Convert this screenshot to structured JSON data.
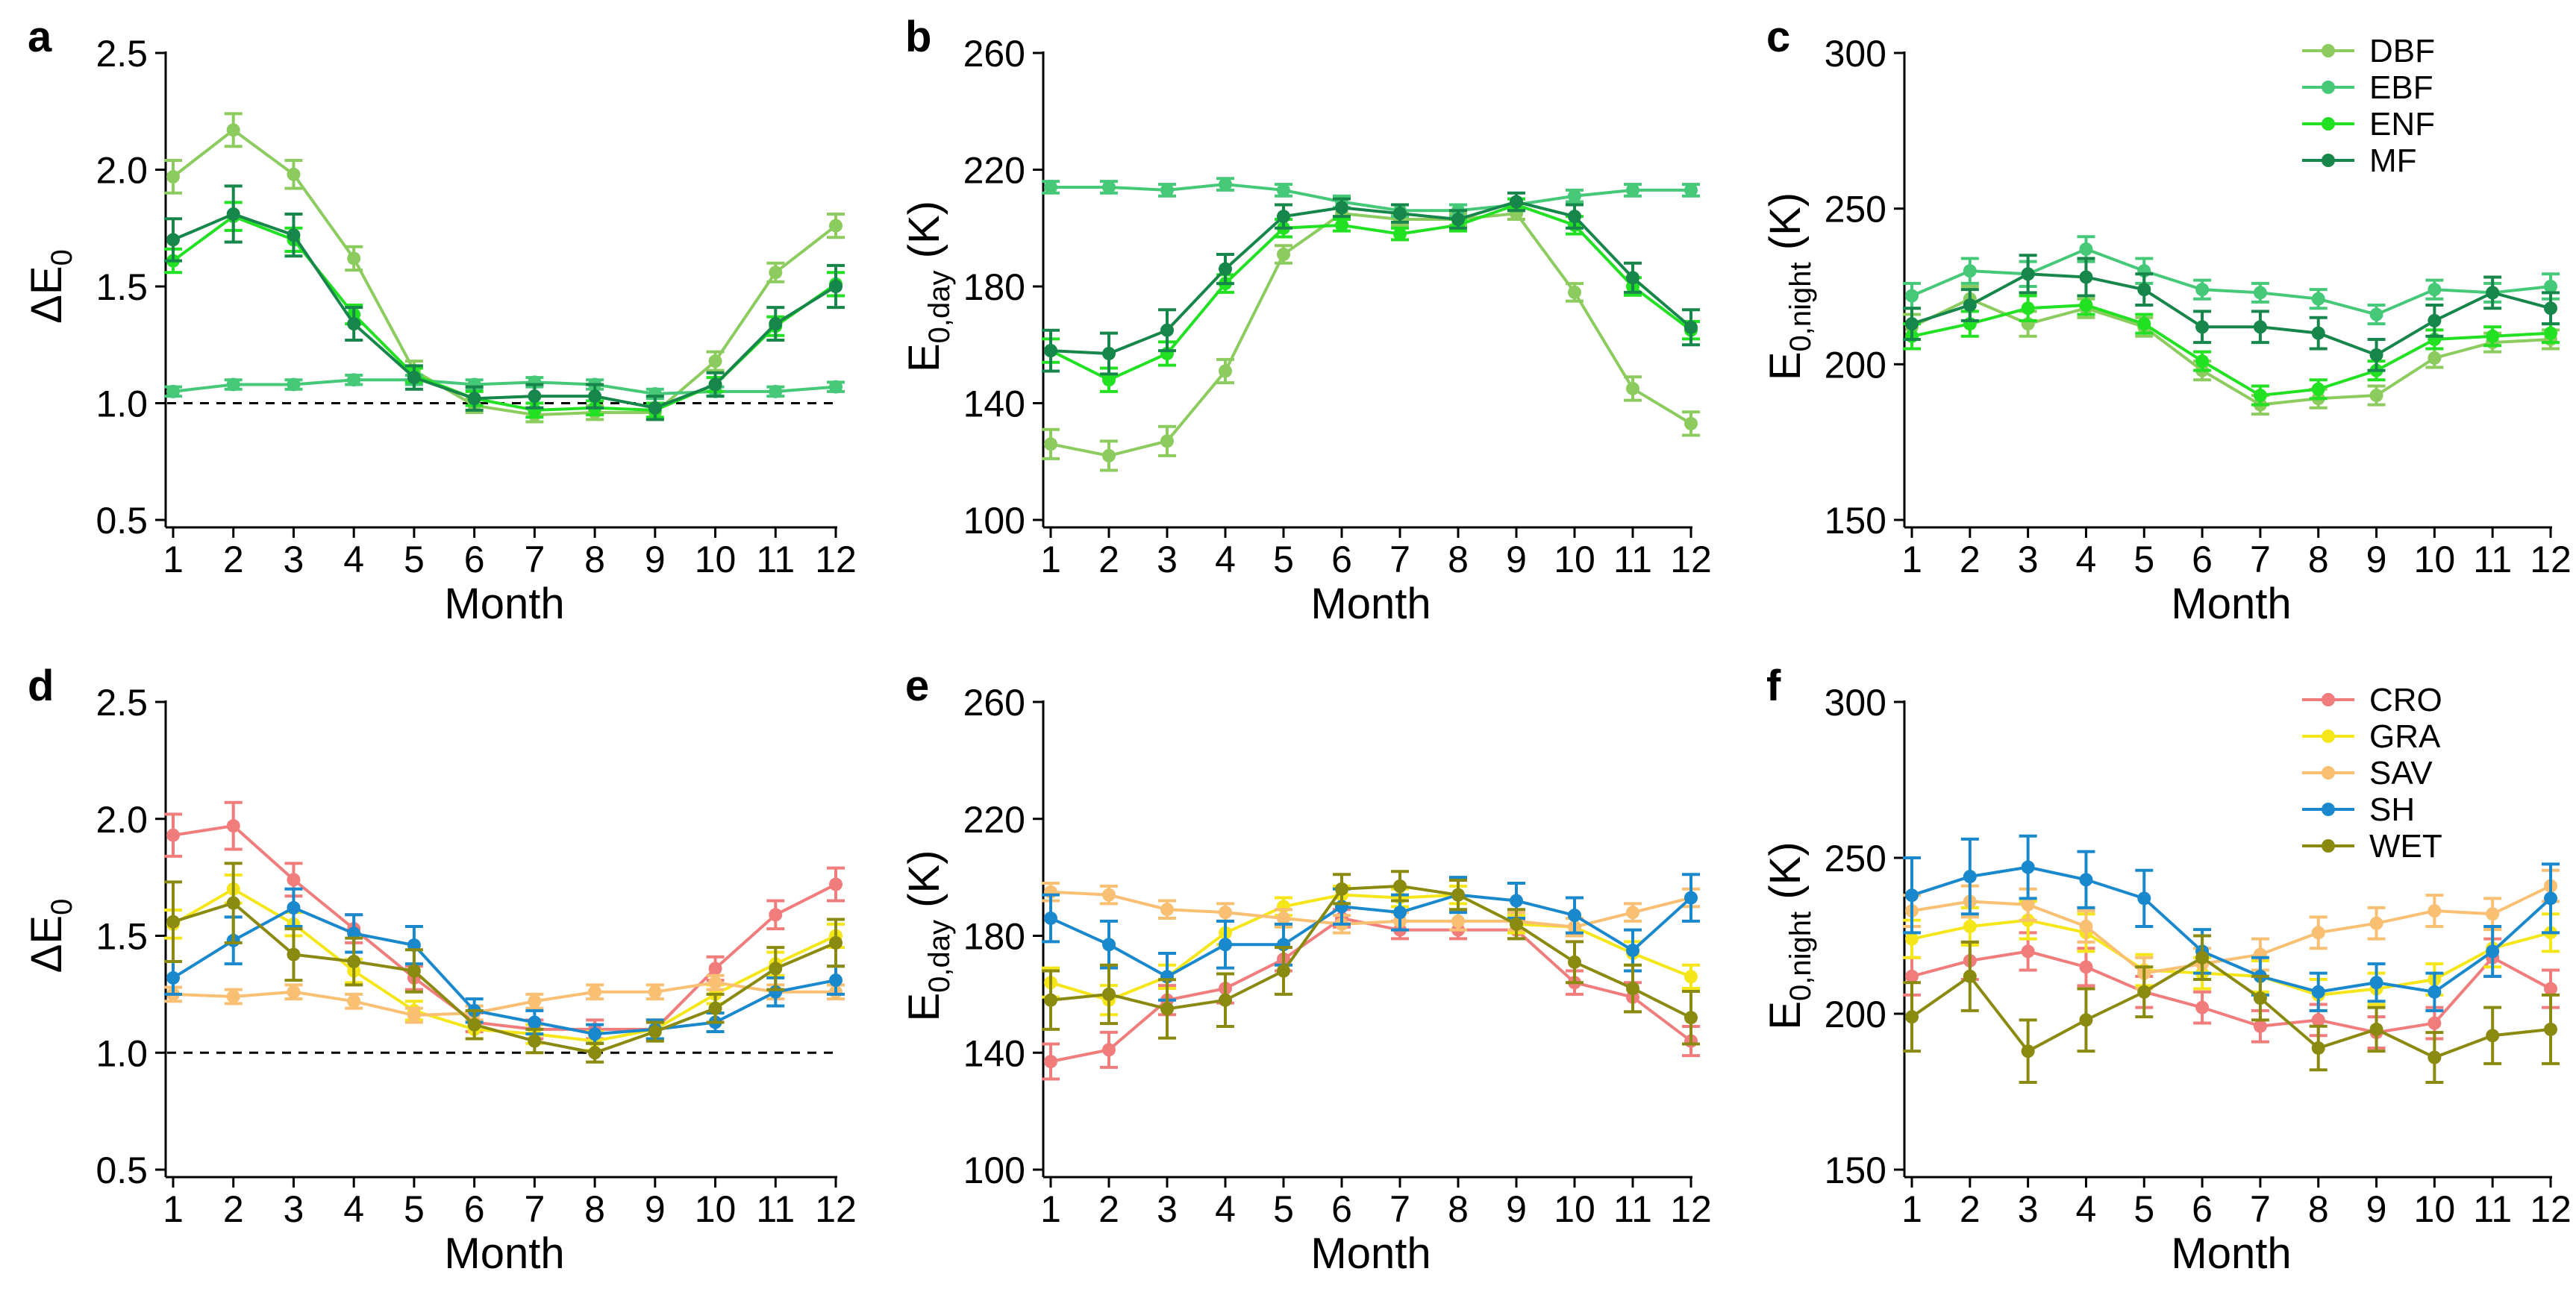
{
  "chart_data": [
    {
      "panel": "a",
      "type": "line",
      "xlabel": "Month",
      "ylabel_base": "ΔE",
      "ylabel_sub": "0",
      "ylim": [
        0.5,
        2.5
      ],
      "yticks": [
        "0.5",
        "1.0",
        "1.5",
        "2.0",
        "2.5"
      ],
      "x": [
        1,
        2,
        3,
        4,
        5,
        6,
        7,
        8,
        9,
        10,
        11,
        12
      ],
      "xticks": [
        "1",
        "2",
        "3",
        "4",
        "5",
        "6",
        "7",
        "8",
        "9",
        "10",
        "11",
        "12"
      ],
      "reference_line": 1.0,
      "legend": null,
      "series": [
        {
          "name": "DBF",
          "color": "#8ccb5e",
          "values": [
            1.97,
            2.17,
            1.98,
            1.62,
            1.14,
            0.99,
            0.95,
            0.96,
            0.96,
            1.18,
            1.56,
            1.76
          ],
          "err": [
            0.07,
            0.07,
            0.06,
            0.05,
            0.04,
            0.03,
            0.03,
            0.03,
            0.03,
            0.04,
            0.04,
            0.05
          ]
        },
        {
          "name": "EBF",
          "color": "#46c879",
          "values": [
            1.05,
            1.08,
            1.08,
            1.1,
            1.1,
            1.08,
            1.09,
            1.08,
            1.04,
            1.05,
            1.05,
            1.07
          ],
          "err": [
            0.02,
            0.02,
            0.02,
            0.02,
            0.02,
            0.02,
            0.02,
            0.02,
            0.02,
            0.02,
            0.02,
            0.02
          ]
        },
        {
          "name": "ENF",
          "color": "#22e022",
          "values": [
            1.61,
            1.8,
            1.7,
            1.38,
            1.12,
            1.02,
            0.97,
            0.98,
            0.97,
            1.08,
            1.33,
            1.51
          ],
          "err": [
            0.05,
            0.06,
            0.05,
            0.04,
            0.03,
            0.03,
            0.03,
            0.03,
            0.03,
            0.03,
            0.04,
            0.05
          ]
        },
        {
          "name": "MF",
          "color": "#16864a",
          "values": [
            1.7,
            1.81,
            1.72,
            1.34,
            1.11,
            1.02,
            1.03,
            1.03,
            0.98,
            1.08,
            1.34,
            1.5
          ],
          "err": [
            0.09,
            0.12,
            0.09,
            0.07,
            0.05,
            0.05,
            0.05,
            0.05,
            0.05,
            0.05,
            0.07,
            0.09
          ]
        }
      ]
    },
    {
      "panel": "b",
      "type": "line",
      "xlabel": "Month",
      "ylabel_base": "E",
      "ylabel_sub": "0,day",
      "ylabel_unit": " (K)",
      "ylim": [
        100,
        260
      ],
      "yticks": [
        "100",
        "140",
        "180",
        "220",
        "260"
      ],
      "x": [
        1,
        2,
        3,
        4,
        5,
        6,
        7,
        8,
        9,
        10,
        11,
        12
      ],
      "xticks": [
        "1",
        "2",
        "3",
        "4",
        "5",
        "6",
        "7",
        "8",
        "9",
        "10",
        "11",
        "12"
      ],
      "reference_line": null,
      "legend": null,
      "series": [
        {
          "name": "DBF",
          "color": "#8ccb5e",
          "values": [
            126,
            122,
            127,
            151,
            191,
            205,
            203,
            203,
            205,
            178,
            145,
            133
          ],
          "err": [
            5,
            5,
            5,
            4,
            3,
            2,
            2,
            2,
            2,
            3,
            4,
            4
          ]
        },
        {
          "name": "EBF",
          "color": "#46c879",
          "values": [
            214,
            214,
            213,
            215,
            213,
            209,
            206,
            206,
            208,
            211,
            213,
            213
          ],
          "err": [
            2,
            2,
            2,
            2,
            2,
            2,
            2,
            2,
            2,
            2,
            2,
            2
          ]
        },
        {
          "name": "ENF",
          "color": "#22e022",
          "values": [
            158,
            148,
            157,
            181,
            200,
            201,
            198,
            201,
            208,
            201,
            180,
            165
          ],
          "err": [
            4,
            4,
            4,
            3,
            3,
            2,
            2,
            2,
            2,
            3,
            3,
            3
          ]
        },
        {
          "name": "MF",
          "color": "#16864a",
          "values": [
            158,
            157,
            165,
            186,
            204,
            207,
            205,
            203,
            209,
            204,
            183,
            166
          ],
          "err": [
            7,
            7,
            7,
            5,
            4,
            3,
            3,
            3,
            3,
            4,
            5,
            6
          ]
        }
      ]
    },
    {
      "panel": "c",
      "type": "line",
      "xlabel": "Month",
      "ylabel_base": "E",
      "ylabel_sub": "0,night",
      "ylabel_unit": " (K)",
      "ylim": [
        150,
        300
      ],
      "yticks": [
        "150",
        "200",
        "250",
        "300"
      ],
      "x": [
        1,
        2,
        3,
        4,
        5,
        6,
        7,
        8,
        9,
        10,
        11,
        12
      ],
      "xticks": [
        "1",
        "2",
        "3",
        "4",
        "5",
        "6",
        "7",
        "8",
        "9",
        "10",
        "11",
        "12"
      ],
      "reference_line": null,
      "legend": {
        "position": "top-right"
      },
      "series": [
        {
          "name": "DBF",
          "color": "#8ccb5e",
          "values": [
            212,
            221,
            213,
            218,
            212,
            198,
            187,
            189,
            190,
            202,
            207,
            208
          ],
          "err": [
            4,
            4,
            4,
            3,
            3,
            3,
            3,
            3,
            3,
            3,
            3,
            3
          ]
        },
        {
          "name": "EBF",
          "color": "#46c879",
          "values": [
            222,
            230,
            229,
            237,
            230,
            224,
            223,
            221,
            216,
            224,
            223,
            225
          ],
          "err": [
            4,
            4,
            4,
            4,
            4,
            3,
            3,
            3,
            3,
            3,
            3,
            4
          ]
        },
        {
          "name": "ENF",
          "color": "#22e022",
          "values": [
            209,
            213,
            218,
            219,
            213,
            201,
            190,
            192,
            198,
            208,
            209,
            210
          ],
          "err": [
            4,
            4,
            4,
            3,
            3,
            3,
            3,
            3,
            3,
            3,
            3,
            3
          ]
        },
        {
          "name": "MF",
          "color": "#16864a",
          "values": [
            213,
            219,
            229,
            228,
            224,
            212,
            212,
            210,
            203,
            214,
            223,
            218
          ],
          "err": [
            5,
            5,
            6,
            6,
            5,
            5,
            5,
            5,
            5,
            5,
            5,
            5
          ]
        }
      ]
    },
    {
      "panel": "d",
      "type": "line",
      "xlabel": "Month",
      "ylabel_base": "ΔE",
      "ylabel_sub": "0",
      "ylim": [
        0.5,
        2.5
      ],
      "yticks": [
        "0.5",
        "1.0",
        "1.5",
        "2.0",
        "2.5"
      ],
      "x": [
        1,
        2,
        3,
        4,
        5,
        6,
        7,
        8,
        9,
        10,
        11,
        12
      ],
      "xticks": [
        "1",
        "2",
        "3",
        "4",
        "5",
        "6",
        "7",
        "8",
        "9",
        "10",
        "11",
        "12"
      ],
      "reference_line": 1.0,
      "legend": null,
      "series": [
        {
          "name": "CRO",
          "color": "#f07c7c",
          "values": [
            1.93,
            1.97,
            1.74,
            1.53,
            1.32,
            1.13,
            1.1,
            1.1,
            1.1,
            1.36,
            1.59,
            1.72
          ],
          "err": [
            0.09,
            0.1,
            0.07,
            0.06,
            0.05,
            0.04,
            0.04,
            0.04,
            0.04,
            0.05,
            0.06,
            0.07
          ]
        },
        {
          "name": "GRA",
          "color": "#f5e61a",
          "values": [
            1.55,
            1.7,
            1.55,
            1.35,
            1.18,
            1.1,
            1.08,
            1.05,
            1.1,
            1.25,
            1.38,
            1.5
          ],
          "err": [
            0.06,
            0.06,
            0.05,
            0.05,
            0.04,
            0.04,
            0.04,
            0.04,
            0.04,
            0.04,
            0.05,
            0.05
          ]
        },
        {
          "name": "SAV",
          "color": "#f9bf72",
          "values": [
            1.25,
            1.24,
            1.26,
            1.22,
            1.16,
            1.17,
            1.22,
            1.26,
            1.26,
            1.3,
            1.26,
            1.26
          ],
          "err": [
            0.03,
            0.03,
            0.03,
            0.03,
            0.03,
            0.03,
            0.03,
            0.03,
            0.03,
            0.03,
            0.03,
            0.03
          ]
        },
        {
          "name": "SH",
          "color": "#1a88cc",
          "values": [
            1.32,
            1.48,
            1.62,
            1.51,
            1.46,
            1.18,
            1.13,
            1.08,
            1.1,
            1.13,
            1.26,
            1.31
          ],
          "err": [
            0.07,
            0.1,
            0.08,
            0.08,
            0.08,
            0.05,
            0.05,
            0.04,
            0.04,
            0.04,
            0.06,
            0.06
          ]
        },
        {
          "name": "WET",
          "color": "#8a8a10",
          "values": [
            1.56,
            1.64,
            1.42,
            1.39,
            1.35,
            1.12,
            1.05,
            1.0,
            1.09,
            1.19,
            1.36,
            1.47
          ],
          "err": [
            0.17,
            0.17,
            0.11,
            0.1,
            0.09,
            0.06,
            0.05,
            0.04,
            0.04,
            0.06,
            0.09,
            0.1
          ]
        }
      ]
    },
    {
      "panel": "e",
      "type": "line",
      "xlabel": "Month",
      "ylabel_base": "E",
      "ylabel_sub": "0,day",
      "ylabel_unit": " (K)",
      "ylim": [
        100,
        260
      ],
      "yticks": [
        "100",
        "140",
        "180",
        "220",
        "260"
      ],
      "x": [
        1,
        2,
        3,
        4,
        5,
        6,
        7,
        8,
        9,
        10,
        11,
        12
      ],
      "xticks": [
        "1",
        "2",
        "3",
        "4",
        "5",
        "6",
        "7",
        "8",
        "9",
        "10",
        "11",
        "12"
      ],
      "reference_line": null,
      "legend": null,
      "series": [
        {
          "name": "CRO",
          "color": "#f07c7c",
          "values": [
            137,
            141,
            158,
            162,
            172,
            186,
            182,
            182,
            182,
            164,
            159,
            144
          ],
          "err": [
            6,
            6,
            5,
            5,
            4,
            3,
            3,
            3,
            3,
            4,
            5,
            5
          ]
        },
        {
          "name": "GRA",
          "color": "#f5e61a",
          "values": [
            164,
            158,
            166,
            181,
            190,
            194,
            193,
            194,
            184,
            183,
            174,
            166
          ],
          "err": [
            5,
            5,
            4,
            4,
            3,
            3,
            3,
            3,
            3,
            3,
            4,
            4
          ]
        },
        {
          "name": "SAV",
          "color": "#f9bf72",
          "values": [
            195,
            194,
            189,
            188,
            186,
            184,
            185,
            185,
            185,
            183,
            188,
            193
          ],
          "err": [
            3,
            3,
            3,
            3,
            3,
            3,
            3,
            3,
            3,
            3,
            3,
            3
          ]
        },
        {
          "name": "SH",
          "color": "#1a88cc",
          "values": [
            186,
            177,
            166,
            177,
            177,
            190,
            188,
            194,
            192,
            187,
            175,
            193
          ],
          "err": [
            8,
            8,
            8,
            8,
            7,
            6,
            6,
            6,
            6,
            6,
            7,
            8
          ]
        },
        {
          "name": "WET",
          "color": "#8a8a10",
          "values": [
            158,
            160,
            155,
            158,
            168,
            196,
            197,
            194,
            184,
            171,
            162,
            152
          ],
          "err": [
            10,
            10,
            10,
            9,
            8,
            5,
            5,
            5,
            5,
            7,
            8,
            9
          ]
        }
      ]
    },
    {
      "panel": "f",
      "type": "line",
      "xlabel": "Month",
      "ylabel_base": "E",
      "ylabel_sub": "0,night",
      "ylabel_unit": " (K)",
      "ylim": [
        150,
        300
      ],
      "yticks": [
        "150",
        "200",
        "250",
        "300"
      ],
      "x": [
        1,
        2,
        3,
        4,
        5,
        6,
        7,
        8,
        9,
        10,
        11,
        12
      ],
      "xticks": [
        "1",
        "2",
        "3",
        "4",
        "5",
        "6",
        "7",
        "8",
        "9",
        "10",
        "11",
        "12"
      ],
      "reference_line": null,
      "legend": {
        "position": "top-right"
      },
      "series": [
        {
          "name": "CRO",
          "color": "#f07c7c",
          "values": [
            212,
            217,
            220,
            215,
            207,
            202,
            196,
            198,
            194,
            197,
            218,
            208
          ],
          "err": [
            6,
            6,
            6,
            6,
            5,
            5,
            5,
            5,
            5,
            5,
            6,
            6
          ]
        },
        {
          "name": "GRA",
          "color": "#f5e61a",
          "values": [
            224,
            228,
            230,
            226,
            214,
            213,
            212,
            206,
            208,
            211,
            221,
            226
          ],
          "err": [
            6,
            6,
            6,
            6,
            5,
            5,
            5,
            5,
            5,
            5,
            6,
            6
          ]
        },
        {
          "name": "SAV",
          "color": "#f9bf72",
          "values": [
            233,
            236,
            235,
            228,
            213,
            216,
            219,
            226,
            229,
            233,
            232,
            241
          ],
          "err": [
            5,
            5,
            5,
            5,
            5,
            5,
            5,
            5,
            5,
            5,
            5,
            5
          ]
        },
        {
          "name": "SH",
          "color": "#1a88cc",
          "values": [
            238,
            244,
            247,
            243,
            237,
            220,
            212,
            207,
            210,
            207,
            220,
            237
          ],
          "err": [
            12,
            12,
            10,
            9,
            9,
            7,
            6,
            6,
            6,
            6,
            8,
            11
          ]
        },
        {
          "name": "WET",
          "color": "#8a8a10",
          "values": [
            199,
            212,
            188,
            198,
            207,
            218,
            205,
            189,
            195,
            186,
            193,
            195
          ],
          "err": [
            11,
            11,
            10,
            10,
            8,
            7,
            7,
            7,
            7,
            8,
            9,
            11
          ]
        }
      ]
    }
  ]
}
